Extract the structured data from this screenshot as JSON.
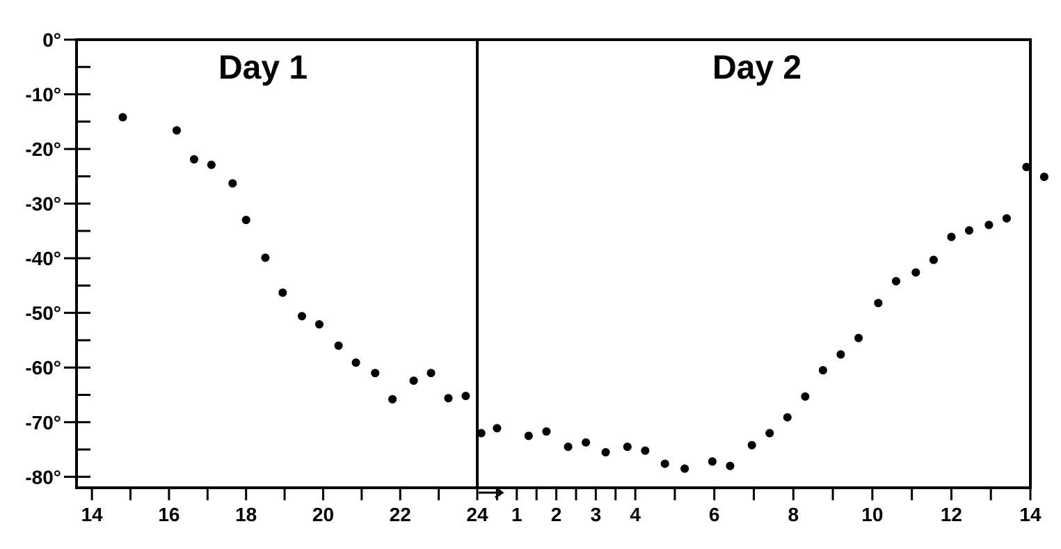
{
  "chart_data": {
    "type": "scatter",
    "title": "",
    "xlabel": "",
    "ylabel": "",
    "grid": false,
    "ylim": [
      -82,
      0
    ],
    "panels": [
      {
        "label": "Day 1",
        "xlim": [
          13.6,
          24
        ],
        "x_ticks": [
          14,
          15,
          16,
          17,
          18,
          19,
          20,
          21,
          22,
          23,
          24
        ],
        "x_tick_labels": [
          {
            "x": 14,
            "text": "14"
          },
          {
            "x": 16,
            "text": "16"
          },
          {
            "x": 18,
            "text": "18"
          },
          {
            "x": 20,
            "text": "20"
          },
          {
            "x": 22,
            "text": "22"
          },
          {
            "x": 24,
            "text": "24"
          }
        ]
      },
      {
        "label": "Day 2",
        "xlim": [
          0,
          14
        ],
        "x_ticks": [
          0.5,
          1,
          1.5,
          2,
          2.5,
          3,
          3.5,
          4,
          5,
          6,
          7,
          8,
          9,
          10,
          11,
          12,
          13,
          14
        ],
        "x_tick_labels": [
          {
            "x": 1,
            "text": "1"
          },
          {
            "x": 2,
            "text": "2"
          },
          {
            "x": 3,
            "text": "3"
          },
          {
            "x": 4,
            "text": "4"
          },
          {
            "x": 6,
            "text": "6"
          },
          {
            "x": 8,
            "text": "8"
          },
          {
            "x": 10,
            "text": "10"
          },
          {
            "x": 12,
            "text": "12"
          },
          {
            "x": 14,
            "text": "14"
          }
        ]
      }
    ],
    "y_ticks": [
      0,
      -5,
      -10,
      -15,
      -20,
      -25,
      -30,
      -35,
      -40,
      -45,
      -50,
      -55,
      -60,
      -65,
      -70,
      -75,
      -80
    ],
    "y_tick_labels": [
      {
        "y": 0,
        "text": "0°"
      },
      {
        "y": -10,
        "text": "-10°"
      },
      {
        "y": -20,
        "text": "-20°"
      },
      {
        "y": -30,
        "text": "-30°"
      },
      {
        "y": -40,
        "text": "-40°"
      },
      {
        "y": -50,
        "text": "-50°"
      },
      {
        "y": -60,
        "text": "-60°"
      },
      {
        "y": -70,
        "text": "-70°"
      },
      {
        "y": -80,
        "text": "-80°"
      }
    ],
    "series": [
      {
        "day": "Day 1",
        "points": [
          {
            "x": 14.8,
            "y": -14.2
          },
          {
            "x": 16.2,
            "y": -16.6
          },
          {
            "x": 16.65,
            "y": -21.9
          },
          {
            "x": 17.1,
            "y": -22.9
          },
          {
            "x": 17.65,
            "y": -26.3
          },
          {
            "x": 18.0,
            "y": -33.0
          },
          {
            "x": 18.5,
            "y": -39.9
          },
          {
            "x": 18.95,
            "y": -46.3
          },
          {
            "x": 19.45,
            "y": -50.6
          },
          {
            "x": 19.9,
            "y": -52.1
          },
          {
            "x": 20.4,
            "y": -56.0
          },
          {
            "x": 20.85,
            "y": -59.1
          },
          {
            "x": 21.35,
            "y": -61.0
          },
          {
            "x": 21.8,
            "y": -65.8
          },
          {
            "x": 22.35,
            "y": -62.4
          },
          {
            "x": 22.8,
            "y": -61.0
          },
          {
            "x": 23.25,
            "y": -65.6
          },
          {
            "x": 23.7,
            "y": -65.2
          }
        ]
      },
      {
        "day": "Day 2",
        "points": [
          {
            "x": 0.1,
            "y": -72.0
          },
          {
            "x": 0.5,
            "y": -71.1
          },
          {
            "x": 1.3,
            "y": -72.5
          },
          {
            "x": 1.75,
            "y": -71.7
          },
          {
            "x": 2.3,
            "y": -74.5
          },
          {
            "x": 2.75,
            "y": -73.7
          },
          {
            "x": 3.25,
            "y": -75.5
          },
          {
            "x": 3.8,
            "y": -74.5
          },
          {
            "x": 4.25,
            "y": -75.2
          },
          {
            "x": 4.75,
            "y": -77.6
          },
          {
            "x": 5.25,
            "y": -78.5
          },
          {
            "x": 5.95,
            "y": -77.2
          },
          {
            "x": 6.4,
            "y": -78.0
          },
          {
            "x": 6.95,
            "y": -74.2
          },
          {
            "x": 7.4,
            "y": -72.0
          },
          {
            "x": 7.85,
            "y": -69.1
          },
          {
            "x": 8.3,
            "y": -65.3
          },
          {
            "x": 8.75,
            "y": -60.5
          },
          {
            "x": 9.2,
            "y": -57.6
          },
          {
            "x": 9.65,
            "y": -54.6
          },
          {
            "x": 10.15,
            "y": -48.2
          },
          {
            "x": 10.6,
            "y": -44.2
          },
          {
            "x": 11.1,
            "y": -42.6
          },
          {
            "x": 11.55,
            "y": -40.3
          },
          {
            "x": 12.0,
            "y": -36.1
          },
          {
            "x": 12.45,
            "y": -34.9
          },
          {
            "x": 12.95,
            "y": -33.9
          },
          {
            "x": 13.4,
            "y": -32.7
          },
          {
            "x": 13.9,
            "y": -23.3
          },
          {
            "x": 14.35,
            "y": -25.1
          }
        ]
      }
    ]
  }
}
